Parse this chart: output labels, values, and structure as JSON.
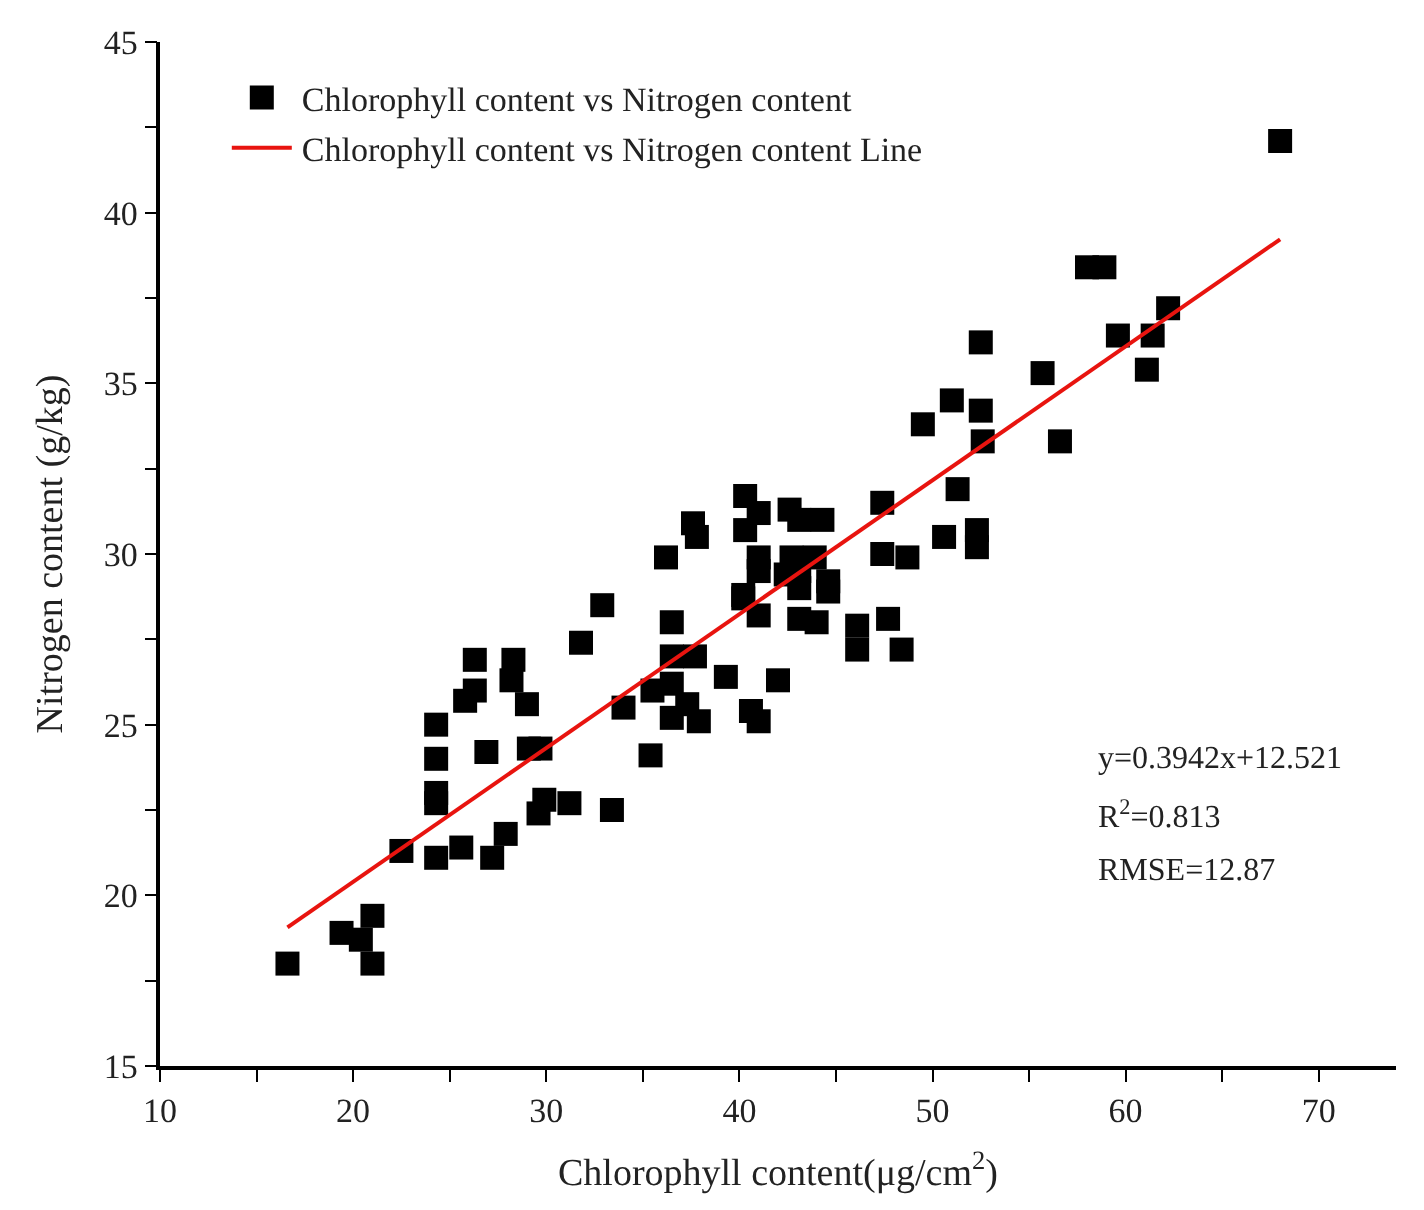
{
  "chart_data": {
    "type": "scatter",
    "xlabel": "Chlorophyll content(μg/cm$^{2}$)",
    "ylabel": "Nitrogen content (g/kg)",
    "xlim": [
      10,
      74
    ],
    "ylim": [
      15,
      45
    ],
    "xticks": [
      10,
      {
        "value": 15,
        "label": null
      },
      20,
      {
        "value": 25,
        "label": null
      },
      30,
      {
        "value": 35,
        "label": null
      },
      40,
      {
        "value": 45,
        "label": null
      },
      50,
      {
        "value": 55,
        "label": null
      },
      60,
      {
        "value": 65,
        "label": null
      },
      70
    ],
    "yticks": [
      15,
      {
        "value": 17.5,
        "label": null
      },
      20,
      {
        "value": 22.5,
        "label": null
      },
      25,
      {
        "value": 27.5,
        "label": null
      },
      30,
      {
        "value": 32.5,
        "label": null
      },
      35,
      {
        "value": 37.5,
        "label": null
      },
      40,
      {
        "value": 42.5,
        "label": null
      },
      45
    ],
    "legend": "top left",
    "annotations": [
      "y=0.3942x+12.521",
      "R$^{2}$=0.813",
      "RMSE=12.87"
    ],
    "series": [
      {
        "name": "Chlorophyll content vs Nitrogen content",
        "marker": "square",
        "color": "#000000",
        "x": [
          16.6,
          19.4,
          20.4,
          21.0,
          21.0,
          22.5,
          24.3,
          24.3,
          24.3,
          24.3,
          24.3,
          25.6,
          25.8,
          26.3,
          26.3,
          26.9,
          27.2,
          27.9,
          28.3,
          28.2,
          29.0,
          29.1,
          29.7,
          29.6,
          29.9,
          31.2,
          31.8,
          32.9,
          33.4,
          34.0,
          35.4,
          35.5,
          36.5,
          36.5,
          36.5,
          36.5,
          37.3,
          37.7,
          37.9,
          36.2,
          37.6,
          37.8,
          68.0,
          58.0,
          58.9,
          62.2,
          59.6,
          61.4,
          61.1,
          52.5,
          55.7,
          51.0,
          52.5,
          49.5,
          52.6,
          56.6,
          47.4,
          51.3,
          40.3,
          41.0,
          42.6,
          43.1,
          44.3,
          40.3,
          47.4,
          48.7,
          50.6,
          52.3,
          52.3,
          41.0,
          42.7,
          43.9,
          41.0,
          43.1,
          44.6,
          40.2,
          42.4,
          40.2,
          41.0,
          43.1,
          44.6,
          43.1,
          44.0,
          46.1,
          46.1,
          47.7,
          48.4,
          39.3,
          42.0,
          40.6,
          41.0
        ],
        "values": [
          18.0,
          18.9,
          18.7,
          19.4,
          18.0,
          21.3,
          25.0,
          24.0,
          23.0,
          22.7,
          21.1,
          21.4,
          25.7,
          26.0,
          26.9,
          24.2,
          21.1,
          21.8,
          26.9,
          26.3,
          25.6,
          24.3,
          24.3,
          22.4,
          22.8,
          22.7,
          27.4,
          28.5,
          22.5,
          25.5,
          24.1,
          26.0,
          28.0,
          27.0,
          26.2,
          25.2,
          25.6,
          27.0,
          25.1,
          29.9,
          30.9,
          30.5,
          42.1,
          38.4,
          38.4,
          37.2,
          36.4,
          36.4,
          35.4,
          36.2,
          35.3,
          34.5,
          34.2,
          33.8,
          33.3,
          33.3,
          31.5,
          31.9,
          31.7,
          31.2,
          31.3,
          31.0,
          31.0,
          30.7,
          30.0,
          29.9,
          30.5,
          30.7,
          30.2,
          29.9,
          29.9,
          29.9,
          29.5,
          29.5,
          29.2,
          28.8,
          29.4,
          28.7,
          28.2,
          29.0,
          28.9,
          28.1,
          28.0,
          27.9,
          27.2,
          28.1,
          27.2,
          26.4,
          26.3,
          25.4,
          25.1
        ]
      },
      {
        "name": "Chlorophyll content vs Nitrogen content Line",
        "type": "line",
        "marker": "none",
        "line_style": "solid",
        "color": "#e8140f",
        "x": [
          16.6,
          68.0
        ],
        "values": [
          19.06,
          39.22
        ]
      }
    ]
  }
}
